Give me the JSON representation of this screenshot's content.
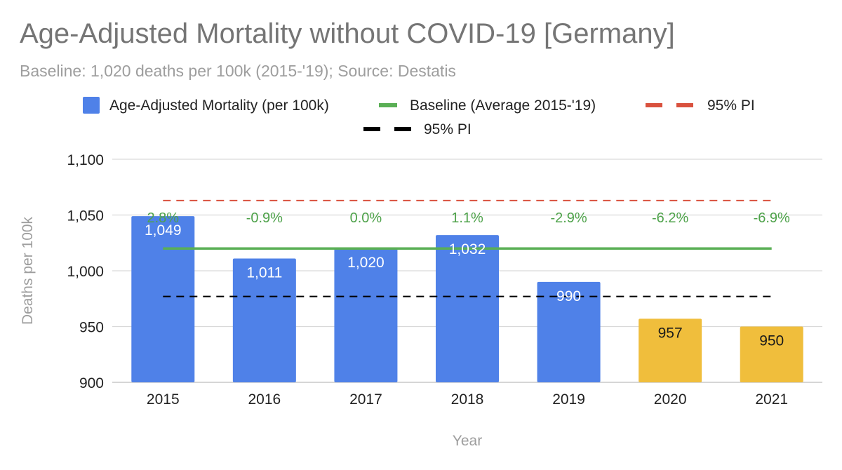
{
  "title": "Age-Adjusted Mortality without COVID-19 [Germany]",
  "subtitle": "Baseline: 1,020 deaths per 100k (2015-'19); Source: Destatis",
  "colors": {
    "bar_pre": "#4f81e8",
    "bar_post": "#f0be3c",
    "baseline": "#5aaf55",
    "pi_upper": "#d9513e",
    "pi_lower": "#000000",
    "pct_text": "#4ea24a",
    "grid": "#d9d9d9",
    "axis_text": "#222222",
    "muted_text": "#9e9e9e"
  },
  "chart_data": {
    "type": "bar",
    "title": "Age-Adjusted Mortality without COVID-19 [Germany]",
    "subtitle": "Baseline: 1,020 deaths per 100k (2015-'19); Source: Destatis",
    "xlabel": "Year",
    "ylabel": "Deaths per 100k",
    "ylim": [
      900,
      1100
    ],
    "yticks": [
      900,
      950,
      1000,
      1050,
      1100
    ],
    "ytick_labels": [
      "900",
      "950",
      "1,000",
      "1,050",
      "1,100"
    ],
    "grid": true,
    "legend_position": "top",
    "categories": [
      "2015",
      "2016",
      "2017",
      "2018",
      "2019",
      "2020",
      "2021"
    ],
    "series": [
      {
        "name": "Age-Adjusted Mortality (per 100k)",
        "type": "bar",
        "values": [
          1049,
          1011,
          1020,
          1032,
          990,
          957,
          950
        ],
        "data_labels": [
          "1,049",
          "1,011",
          "1,020",
          "1,032",
          "990",
          "957",
          "950"
        ],
        "point_colors": [
          "bar_pre",
          "bar_pre",
          "bar_pre",
          "bar_pre",
          "bar_pre",
          "bar_post",
          "bar_post"
        ]
      },
      {
        "name": "Baseline (Average 2015-'19)",
        "type": "line",
        "values": [
          1020,
          1020,
          1020,
          1020,
          1020,
          1020,
          1020
        ],
        "data_labels": [
          "2.8%",
          "-0.9%",
          "0.0%",
          "1.1%",
          "-2.9%",
          "-6.2%",
          "-6.9%"
        ]
      },
      {
        "name": "95% PI",
        "type": "dashed-line",
        "color_key": "pi_upper",
        "values": [
          1063,
          1063,
          1063,
          1063,
          1063,
          1063,
          1063
        ]
      },
      {
        "name": "95% PI",
        "type": "dashed-line",
        "color_key": "pi_lower",
        "values": [
          977,
          977,
          977,
          977,
          977,
          977,
          977
        ]
      }
    ]
  }
}
